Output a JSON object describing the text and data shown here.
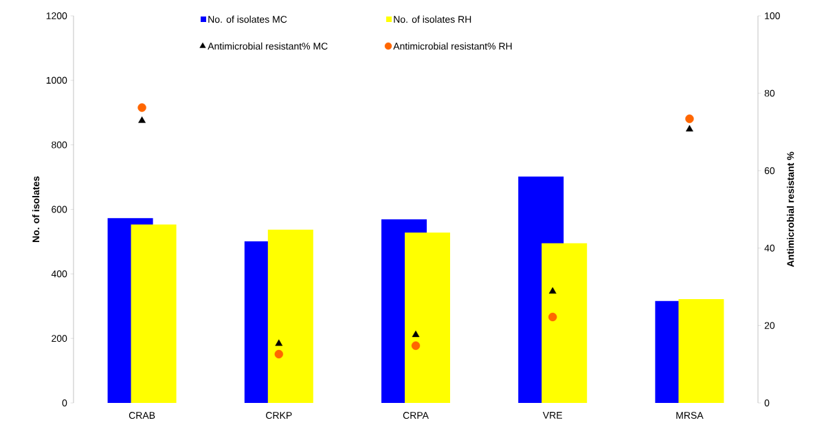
{
  "chart_data": {
    "type": "bar",
    "categories": [
      "CRAB",
      "CRKP",
      "CRPA",
      "VRE",
      "MRSA"
    ],
    "ylabel": "No. of isolates",
    "y2label": "Antimicrobial resistant %",
    "ylim": [
      0,
      1200
    ],
    "yticks": [
      0,
      200,
      400,
      600,
      800,
      1000,
      1200
    ],
    "y2lim": [
      0,
      100
    ],
    "y2ticks": [
      0,
      20,
      40,
      60,
      80,
      100
    ],
    "legend": "top",
    "grid": false,
    "series": [
      {
        "name": "No. of isolates MC",
        "color": "#0000ff",
        "values": [
          573,
          501,
          569,
          702,
          316
        ]
      },
      {
        "name": "No. of isolates RH",
        "color": "#ffff00",
        "values": [
          553,
          537,
          528,
          495,
          322
        ]
      },
      {
        "name": "Antimicrobial resistant% MC",
        "type": "scatter",
        "axis": "y2",
        "marker": "triangle",
        "color": "#000000",
        "values": [
          72.9,
          15.3,
          17.6,
          28.8,
          70.7
        ]
      },
      {
        "name": "Antimicrobial resistant% RH",
        "type": "scatter",
        "axis": "y2",
        "marker": "circle",
        "color": "#ff6600",
        "values": [
          76.3,
          12.6,
          14.8,
          22.2,
          73.4
        ]
      }
    ]
  }
}
